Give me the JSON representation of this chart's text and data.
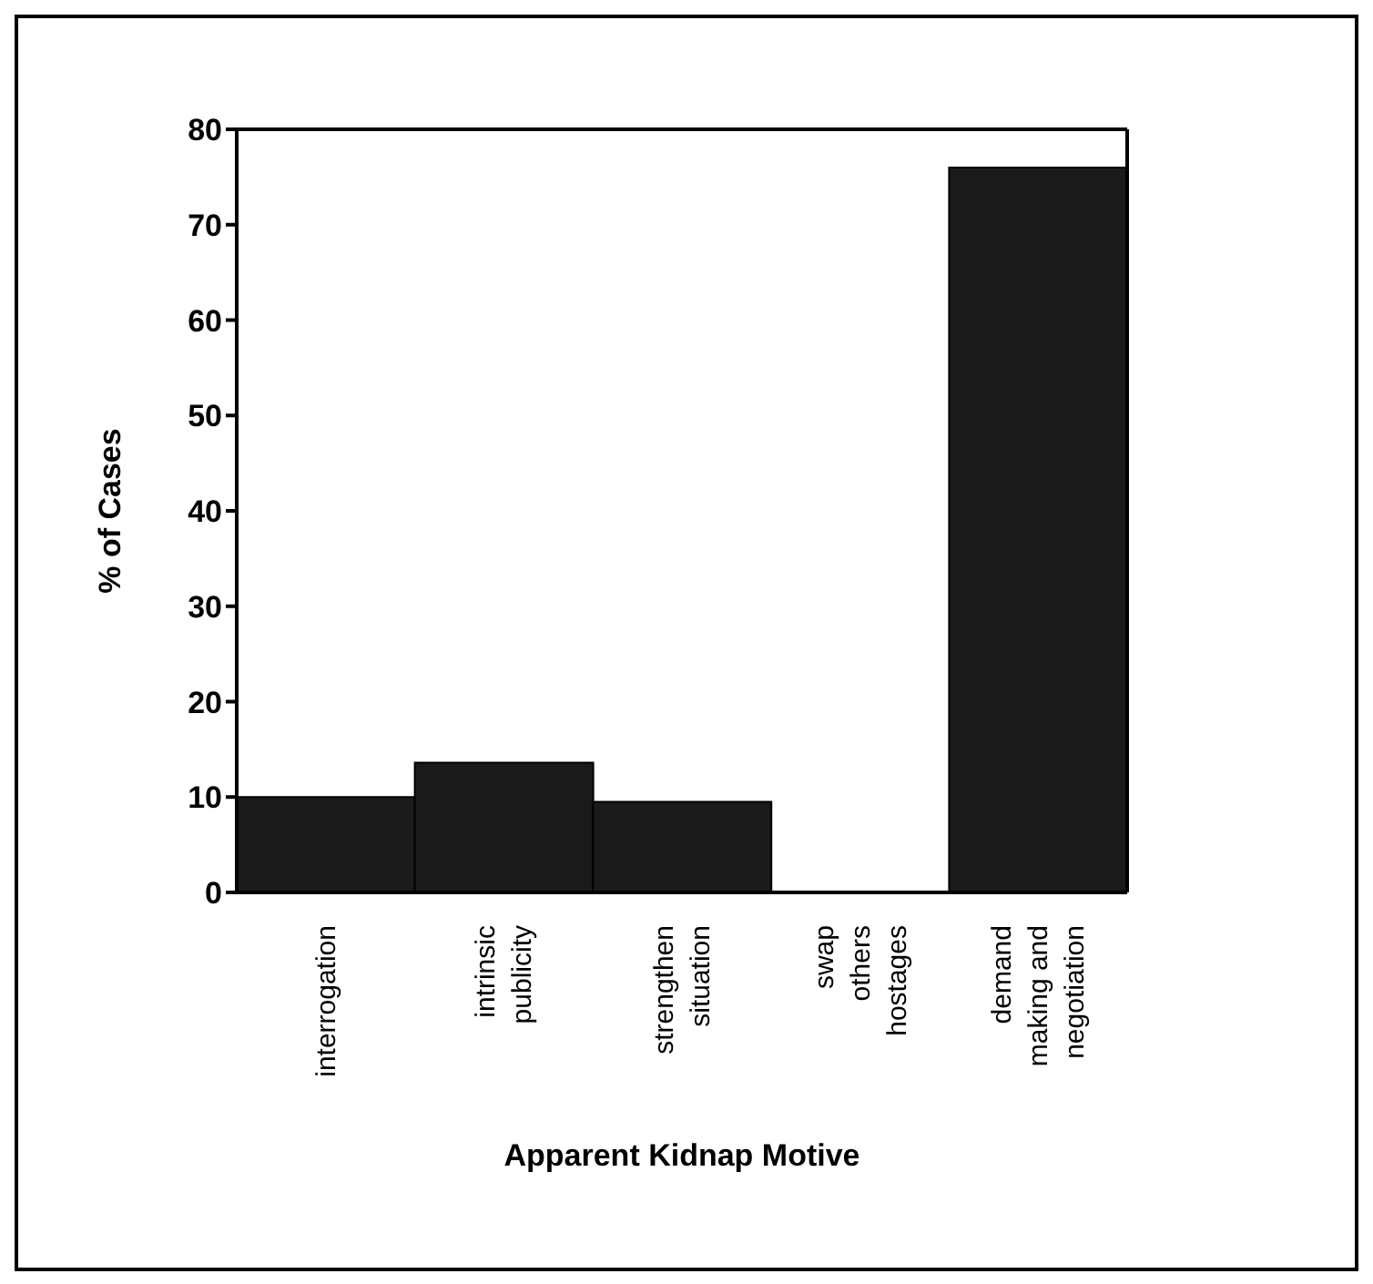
{
  "chart_data": {
    "type": "bar",
    "xlabel": "Apparent Kidnap Motive",
    "ylabel": "% of Cases",
    "categories": [
      "interrogation",
      "intrinsic\npublicity",
      "strengthen\nsituation",
      "swap\nothers\nhostages",
      "demand\nmaking and\nnegotiation"
    ],
    "values": [
      10,
      13.6,
      9.5,
      0,
      76
    ],
    "color": "#1a1a1a",
    "ylim": [
      0,
      80
    ],
    "yticks": [
      0,
      10,
      20,
      30,
      40,
      50,
      60,
      70,
      80
    ],
    "grid": false,
    "legend": false
  }
}
